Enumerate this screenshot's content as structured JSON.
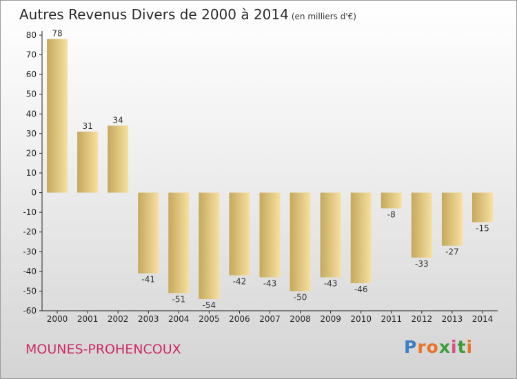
{
  "title": "Autres Revenus Divers de 2000 à 2014",
  "subtitle": "(en milliers d'€)",
  "commune": "MOUNES-PROHENCOUX",
  "logo": {
    "letters": [
      "P",
      "r",
      "o",
      "x",
      "i",
      "t",
      "i"
    ],
    "colors": [
      "#3a7fc8",
      "#e8732a",
      "#e8732a",
      "#3a9e3a",
      "#d94c8a",
      "#3a9e3a",
      "#e8732a"
    ]
  },
  "colors": {
    "bar_light": "#f8e0a0",
    "bar_dark": "#c4a85c",
    "title": "#cc2a66"
  },
  "chart_data": {
    "type": "bar",
    "categories": [
      "2000",
      "2001",
      "2002",
      "2003",
      "2004",
      "2005",
      "2006",
      "2007",
      "2008",
      "2009",
      "2010",
      "2011",
      "2012",
      "2013",
      "2014"
    ],
    "values": [
      78,
      31,
      34,
      -41,
      -51,
      -54,
      -42,
      -43,
      -50,
      -43,
      -46,
      -8,
      -33,
      -27,
      -15
    ],
    "ylim": [
      -60,
      80
    ],
    "yticks": [
      80,
      70,
      60,
      50,
      40,
      30,
      20,
      10,
      0,
      -10,
      -20,
      -30,
      -40,
      -50,
      -60
    ],
    "grid": false,
    "xlabel": "",
    "ylabel": ""
  }
}
